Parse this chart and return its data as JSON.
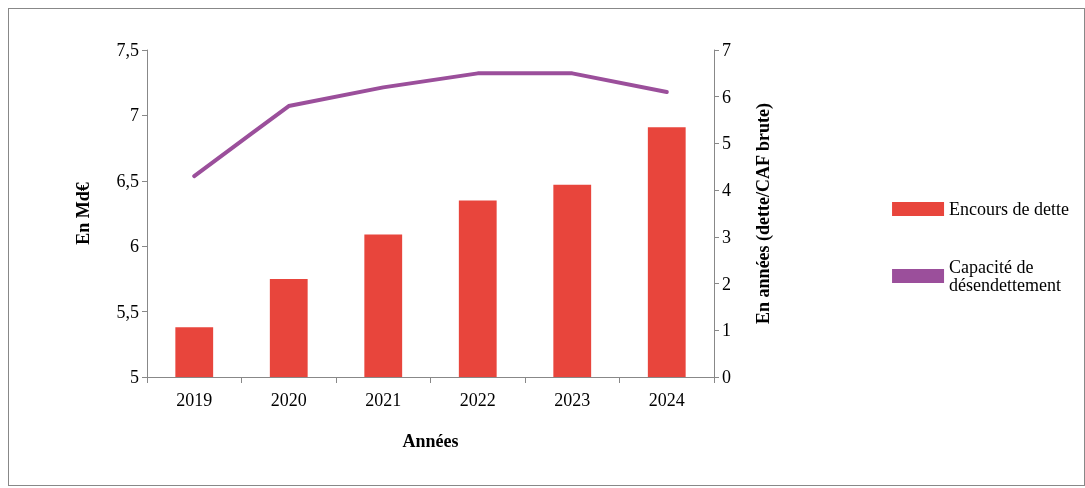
{
  "chart_data": {
    "type": "bar",
    "xlabel": "Années",
    "ylabel": "En Md€",
    "y2label": "En années (dette/CAF brute)",
    "categories": [
      "2019",
      "2020",
      "2021",
      "2022",
      "2023",
      "2024"
    ],
    "series": [
      {
        "name": "Encours de dette",
        "color": "#e8453c",
        "values": [
          5.38,
          5.75,
          6.09,
          6.35,
          6.47,
          6.91
        ]
      },
      {
        "name": "Capacité de désendettement",
        "type": "line",
        "axis": "y2",
        "color": "#9b4f9b",
        "values": [
          4.3,
          5.8,
          6.2,
          6.5,
          6.5,
          6.1
        ]
      }
    ],
    "ylim": [
      5,
      7.5
    ],
    "yticks": [
      5,
      {
        "value": 5.5,
        "label": "5,5"
      },
      6,
      {
        "value": 6.5,
        "label": "6,5"
      },
      7,
      {
        "value": 7.5,
        "label": "7,5"
      }
    ],
    "y2lim": [
      0,
      7
    ],
    "y2ticks": [
      0,
      1,
      2,
      3,
      4,
      5,
      6,
      7
    ],
    "grid": false,
    "legend": "right",
    "marker": "none"
  }
}
